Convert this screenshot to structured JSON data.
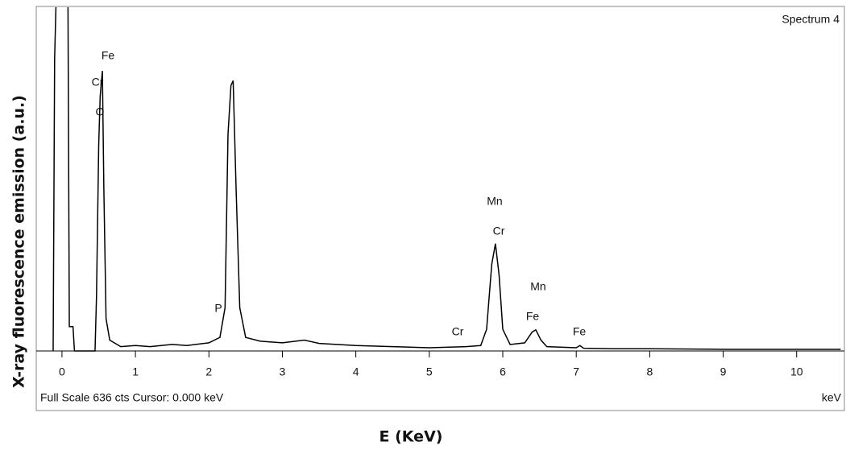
{
  "chart_data": {
    "type": "line",
    "spectrum_name": "Spectrum 4",
    "footer": "Full Scale 636 cts  Cursor: 0.000 keV",
    "x_unit": "keV",
    "y_label": "X-ray fluorescence emission (a.u.)",
    "x_label": "E (KeV)",
    "annotations": [
      "Fe",
      "Cr",
      "O",
      "P",
      "Mn",
      "Cr",
      "Mn",
      "Fe",
      "Cr",
      "Fe"
    ],
    "xlim": [
      -0.35,
      10.65
    ],
    "xticks": [
      0,
      1,
      2,
      3,
      4,
      5,
      6,
      7,
      8,
      9,
      10
    ],
    "ylim": [
      0,
      636
    ],
    "series": [
      {
        "color": "#000000",
        "x": [
          -0.12,
          -0.1,
          -0.07,
          0.08,
          0.1,
          0.15,
          0.17,
          0.45,
          0.47,
          0.5,
          0.52,
          0.55,
          0.57,
          0.6,
          0.65,
          0.8,
          1.0,
          1.2,
          1.5,
          1.7,
          2.0,
          2.15,
          2.22,
          2.26,
          2.3,
          2.33,
          2.37,
          2.42,
          2.5,
          2.7,
          3.0,
          3.3,
          3.5,
          4.0,
          4.5,
          5.0,
          5.5,
          5.7,
          5.78,
          5.85,
          5.9,
          5.95,
          6.0,
          6.1,
          6.3,
          6.4,
          6.45,
          6.52,
          6.6,
          7.0,
          7.05,
          7.1,
          7.5,
          8.0,
          9.0,
          10.0,
          10.6
        ],
        "values": [
          0,
          540,
          700,
          700,
          45,
          45,
          0,
          0,
          100,
          380,
          470,
          517,
          300,
          60,
          20,
          8,
          10,
          8,
          12,
          10,
          15,
          25,
          80,
          400,
          490,
          499,
          300,
          80,
          25,
          18,
          15,
          20,
          14,
          10,
          8,
          6,
          8,
          10,
          40,
          160,
          198,
          140,
          40,
          12,
          15,
          35,
          39,
          20,
          8,
          6,
          10,
          5,
          4,
          4,
          3,
          3,
          3
        ]
      }
    ]
  }
}
